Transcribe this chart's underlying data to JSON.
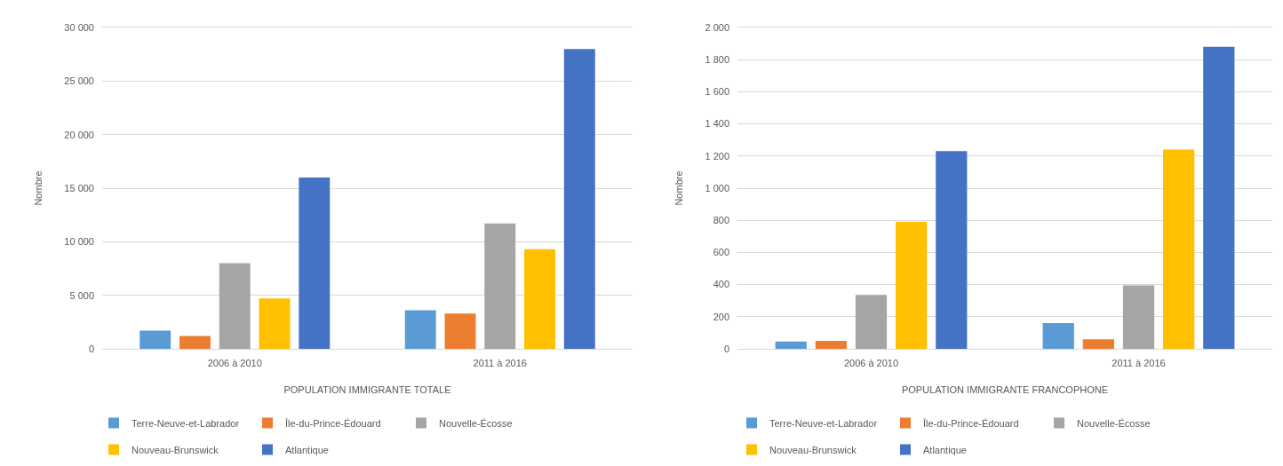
{
  "chart_data": [
    {
      "type": "bar",
      "xlabel": "POPULATION IMMIGRANTE TOTALE",
      "ylabel": "Nombre",
      "categories": [
        "2006 à 2010",
        "2011 à 2016"
      ],
      "series": [
        {
          "name": "Terre-Neuve-et-Labrador",
          "color": "#5b9bd5",
          "values": [
            1700,
            3600
          ]
        },
        {
          "name": "Île-du-Prince-Édouard",
          "color": "#ed7d31",
          "values": [
            1200,
            3300
          ]
        },
        {
          "name": "Nouvelle-Écosse",
          "color": "#a5a5a5",
          "values": [
            8000,
            11700
          ]
        },
        {
          "name": "Nouveau-Brunswick",
          "color": "#ffc000",
          "values": [
            4700,
            9300
          ]
        },
        {
          "name": "Atlantique",
          "color": "#4472c4",
          "values": [
            16000,
            28000
          ]
        }
      ],
      "ylim": [
        0,
        30000
      ],
      "yticks": [
        0,
        {
          "value": 5000,
          "label": "5 000"
        },
        {
          "value": 10000,
          "label": "10 000"
        },
        {
          "value": 15000,
          "label": "15 000"
        },
        {
          "value": 20000,
          "label": "20 000"
        },
        {
          "value": 25000,
          "label": "25 000"
        },
        {
          "value": 30000,
          "label": "30 000"
        }
      ],
      "grid": "y",
      "legend": "bottom"
    },
    {
      "type": "bar",
      "xlabel": "POPULATION IMMIGRANTE FRANCOPHONE",
      "ylabel": "Nombre",
      "categories": [
        "2006 à 2010",
        "2011 à 2016"
      ],
      "series": [
        {
          "name": "Terre-Neuve-et-Labrador",
          "color": "#5b9bd5",
          "values": [
            45,
            160
          ]
        },
        {
          "name": "Île-du-Prince-Édouard",
          "color": "#ed7d31",
          "values": [
            50,
            60
          ]
        },
        {
          "name": "Nouvelle-Écosse",
          "color": "#a5a5a5",
          "values": [
            335,
            395
          ]
        },
        {
          "name": "Nouveau-Brunswick",
          "color": "#ffc000",
          "values": [
            790,
            1240
          ]
        },
        {
          "name": "Atlantique",
          "color": "#4472c4",
          "values": [
            1230,
            1880
          ]
        }
      ],
      "ylim": [
        0,
        2000
      ],
      "yticks": [
        0,
        200,
        400,
        600,
        800,
        {
          "value": 1000,
          "label": "1 000"
        },
        {
          "value": 1200,
          "label": "1 200"
        },
        {
          "value": 1400,
          "label": "1 400"
        },
        {
          "value": 1600,
          "label": "1 600"
        },
        {
          "value": 1800,
          "label": "1 800"
        },
        {
          "value": 2000,
          "label": "2 000"
        }
      ],
      "grid": "y",
      "legend": "bottom"
    }
  ]
}
